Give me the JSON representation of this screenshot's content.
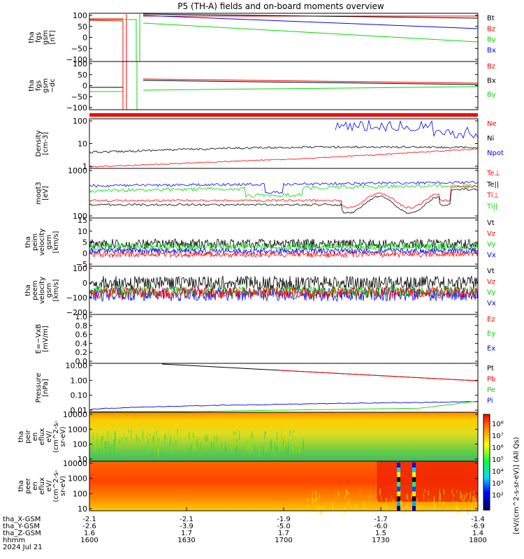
{
  "title": "P5 (TH-A) fields and on-board moments overview",
  "colors": {
    "black": "#000000",
    "red": "#ff0000",
    "green": "#00dd00",
    "blue": "#0000ff"
  },
  "chart_data": [
    {
      "type": "line",
      "panel": "fgs_gsm",
      "ylabel": [
        "tha",
        "fgs",
        "gsm",
        "[nT]"
      ],
      "yticks": [
        "100",
        "50",
        "0",
        "−50",
        "−100"
      ],
      "ylim": [
        -100,
        115
      ],
      "legend": [
        {
          "name": "Bt",
          "color": "black"
        },
        {
          "name": "Bz",
          "color": "red"
        },
        {
          "name": "By",
          "color": "green"
        },
        {
          "name": "Bx",
          "color": "blue"
        }
      ]
    },
    {
      "type": "line",
      "panel": "fgs_gsm_dc",
      "ylabel": [
        "tha",
        "fgs",
        "gsm",
        "−dc"
      ],
      "yticks": [
        "100",
        "50",
        "0",
        "−50",
        "−100"
      ],
      "ylim": [
        -125,
        110
      ],
      "legend": [
        {
          "name": "Bz",
          "color": "red"
        },
        {
          "name": "Bx",
          "color": "black"
        },
        {
          "name": "By",
          "color": "green"
        }
      ]
    },
    {
      "type": "line",
      "panel": "density",
      "log": true,
      "ylabel": [
        "Density",
        "[cm-3]"
      ],
      "yticks": [
        "100",
        "10",
        "1"
      ],
      "ylim": [
        0.3,
        100
      ],
      "legend": [
        {
          "name": "Ne",
          "color": "red"
        },
        {
          "name": "Ni",
          "color": "black"
        },
        {
          "name": "Npot",
          "color": "blue"
        }
      ]
    },
    {
      "type": "line",
      "panel": "temperature",
      "log": true,
      "ylabel": [
        "moqt3",
        "[eV]"
      ],
      "yticks": [
        "1000",
        "100"
      ],
      "ylim": [
        40,
        4000
      ],
      "legend": [
        {
          "name": "Te⊥",
          "color": "red"
        },
        {
          "name": "Te||",
          "color": "black"
        },
        {
          "name": "Ti⊥",
          "color": "red"
        },
        {
          "name": "Ti||",
          "color": "green"
        }
      ]
    },
    {
      "type": "line",
      "panel": "peim_velocity",
      "ylabel": [
        "tha",
        "peim",
        "velocity",
        "gsm",
        "[km/s]"
      ],
      "yticks": [
        "15",
        "10",
        "5",
        "0",
        "−5"
      ],
      "ylim": [
        -6,
        17
      ],
      "legend": [
        {
          "name": "Vt",
          "color": "black"
        },
        {
          "name": "Vz",
          "color": "red"
        },
        {
          "name": "Vy",
          "color": "green"
        },
        {
          "name": "Vx",
          "color": "blue"
        }
      ]
    },
    {
      "type": "line",
      "panel": "peem_velocity",
      "ylabel": [
        "tha",
        "peem",
        "velocity",
        "gsm",
        "[km/s]"
      ],
      "yticks": [
        "100",
        "0",
        "−100",
        "−200"
      ],
      "ylim": [
        -200,
        160
      ],
      "legend": [
        {
          "name": "Vt",
          "color": "black"
        },
        {
          "name": "Vz",
          "color": "red"
        },
        {
          "name": "Vy",
          "color": "green"
        },
        {
          "name": "Vx",
          "color": "blue"
        }
      ]
    },
    {
      "type": "line",
      "panel": "efield",
      "ylabel": [
        "E=−VxB",
        "[mV/m]"
      ],
      "yticks": [
        "1.0",
        "0.8",
        "0.6",
        "0.4",
        "0.2",
        "0.0"
      ],
      "ylim": [
        0,
        1
      ],
      "legend": [
        {
          "name": "Ez",
          "color": "red"
        },
        {
          "name": "Ey",
          "color": "green"
        },
        {
          "name": "Ex",
          "color": "blue"
        }
      ]
    },
    {
      "type": "line",
      "panel": "pressure",
      "log": true,
      "ylabel": [
        "Pressure",
        "[nPa]"
      ],
      "yticks": [
        "10.00",
        "1.00",
        "0.10",
        "0.01"
      ],
      "ylim": [
        0.006,
        40
      ],
      "legend": [
        {
          "name": "Pt",
          "color": "black"
        },
        {
          "name": "Pb",
          "color": "red"
        },
        {
          "name": "Pe",
          "color": "green"
        },
        {
          "name": "Pi",
          "color": "blue"
        }
      ]
    },
    {
      "type": "heatmap",
      "panel": "peir_en_eflux",
      "ylabel": [
        "tha",
        "peir",
        "en",
        "eflux",
        "eV/",
        "(cm^2-s-",
        "sr-eV)"
      ],
      "yticks": [
        "10000",
        "1000",
        "100",
        "10"
      ]
    },
    {
      "type": "heatmap",
      "panel": "peer_en_eflux",
      "ylabel": [
        "tha",
        "peer",
        "en",
        "eflux",
        "eV/",
        "(cm^2-s-",
        "sr-eV)"
      ],
      "yticks": [
        "10000",
        "1000",
        "100",
        "10"
      ]
    }
  ],
  "colorbar": {
    "label": "[eV/(cm^2-s-sr-eV)] (All Qs)",
    "ticks": [
      "10⁸",
      "10⁷",
      "10⁶",
      "10⁵",
      "10⁴",
      "10³",
      "10²"
    ]
  },
  "xaxis": {
    "row_labels": [
      "tha_X-GSM",
      "tha_Y-GSM",
      "tha_Z-GSM",
      "hhmm",
      "2024 Jul 21"
    ],
    "columns": [
      {
        "x": "-2.1",
        "y": "-2.6",
        "z": "1.6",
        "t": "1600"
      },
      {
        "x": "-2.1",
        "y": "-3.9",
        "z": "1.7",
        "t": "1630"
      },
      {
        "x": "-1.9",
        "y": "-5.0",
        "z": "1.7",
        "t": "1700"
      },
      {
        "x": "-1.7",
        "y": "-6.0",
        "z": "1.5",
        "t": "1730"
      },
      {
        "x": "-1.4",
        "y": "-6.9",
        "z": "1.4",
        "t": "1800"
      }
    ]
  }
}
